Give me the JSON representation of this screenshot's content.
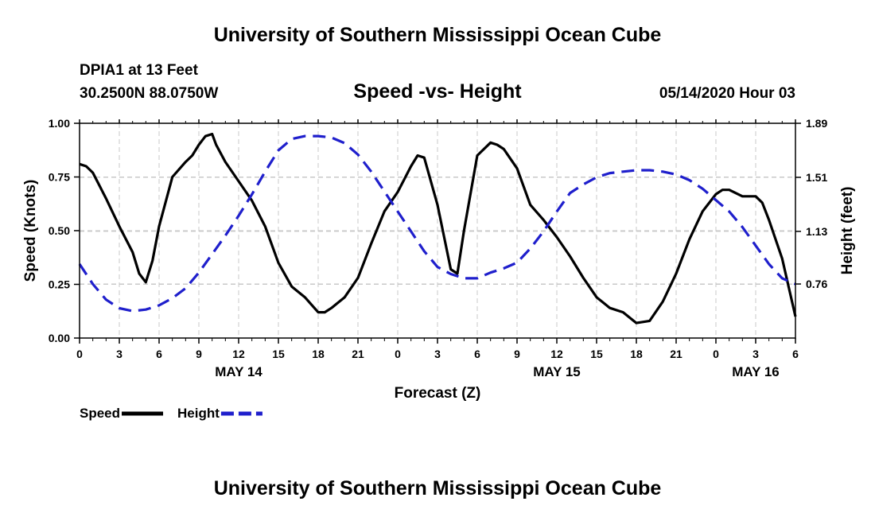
{
  "header": {
    "title_top": "University of Southern Mississippi Ocean Cube",
    "title_bottom": "University of Southern Mississippi Ocean Cube",
    "station": "DPIA1 at 13 Feet",
    "coords": "30.2500N 88.0750W",
    "subtitle": "Speed -vs- Height",
    "datetime": "05/14/2020 Hour 03"
  },
  "chart_data": {
    "type": "line",
    "title": "Speed -vs- Height",
    "xlabel": "Forecast (Z)",
    "ylabel": "Speed (Knots)",
    "y2label": "Height (feet)",
    "xlim": [
      0,
      54
    ],
    "ylim": [
      0,
      1.0
    ],
    "y2lim": [
      0.38,
      1.89
    ],
    "x_ticks": [
      0,
      3,
      6,
      9,
      12,
      15,
      18,
      21,
      24,
      27,
      30,
      33,
      36,
      39,
      42,
      45,
      48,
      51,
      54
    ],
    "x_tick_labels": [
      "0",
      "3",
      "6",
      "9",
      "12",
      "15",
      "18",
      "21",
      "0",
      "3",
      "6",
      "9",
      "12",
      "15",
      "18",
      "21",
      "0",
      "3",
      "6"
    ],
    "y_ticks": [
      0,
      0.25,
      0.5,
      0.75,
      1.0
    ],
    "y_tick_labels": [
      "0.00",
      "0.25",
      "0.50",
      "0.75",
      "1.00"
    ],
    "y2_ticks": [
      0.76,
      1.13,
      1.51,
      1.89
    ],
    "y2_tick_labels": [
      "0.76",
      "1.13",
      "1.51",
      "1.89"
    ],
    "day_labels": [
      {
        "x": 12,
        "label": "MAY 14"
      },
      {
        "x": 36,
        "label": "MAY 15"
      },
      {
        "x": 51,
        "label": "MAY 16"
      }
    ],
    "grid": true,
    "legend_position": "bottom-left",
    "series": [
      {
        "name": "Speed",
        "label": "Speed",
        "axis": "left",
        "color": "#000000",
        "dash": "solid",
        "x": [
          0,
          0.5,
          1,
          2,
          3,
          4,
          4.5,
          5,
          5.5,
          6,
          7,
          8,
          8.5,
          9,
          9.5,
          10,
          10.3,
          11,
          12,
          13,
          14,
          15,
          16,
          17,
          18,
          18.5,
          19,
          20,
          21,
          22,
          23,
          24,
          25,
          25.5,
          26,
          27,
          28,
          28.5,
          29,
          30,
          31,
          31.5,
          32,
          33,
          34,
          35,
          36,
          37,
          38,
          39,
          40,
          41,
          42,
          43,
          44,
          45,
          46,
          47,
          48,
          48.5,
          49,
          50,
          51,
          51.5,
          52,
          53,
          54
        ],
        "values": [
          0.81,
          0.8,
          0.77,
          0.65,
          0.52,
          0.4,
          0.3,
          0.26,
          0.36,
          0.52,
          0.75,
          0.82,
          0.85,
          0.9,
          0.94,
          0.95,
          0.9,
          0.82,
          0.73,
          0.64,
          0.52,
          0.35,
          0.24,
          0.19,
          0.12,
          0.12,
          0.14,
          0.19,
          0.28,
          0.44,
          0.59,
          0.68,
          0.8,
          0.85,
          0.84,
          0.62,
          0.32,
          0.3,
          0.5,
          0.85,
          0.91,
          0.9,
          0.88,
          0.79,
          0.62,
          0.55,
          0.47,
          0.38,
          0.28,
          0.19,
          0.14,
          0.12,
          0.07,
          0.08,
          0.17,
          0.3,
          0.46,
          0.59,
          0.67,
          0.69,
          0.69,
          0.66,
          0.66,
          0.63,
          0.55,
          0.37,
          0.1
        ]
      },
      {
        "name": "Height",
        "label": "Height",
        "axis": "right",
        "color": "#1f1fcc",
        "dash": "dashed",
        "x": [
          0,
          1,
          2,
          3,
          4,
          5,
          6,
          7,
          8,
          9,
          10,
          11,
          12,
          13,
          14,
          15,
          16,
          17,
          18,
          19,
          20,
          21,
          22,
          23,
          24,
          25,
          26,
          27,
          28,
          29,
          30,
          31,
          32,
          33,
          34,
          35,
          36,
          37,
          38,
          39,
          40,
          41,
          42,
          43,
          44,
          45,
          46,
          47,
          48,
          49,
          50,
          51,
          52,
          53,
          54
        ],
        "values": [
          0.9,
          0.76,
          0.65,
          0.59,
          0.57,
          0.58,
          0.61,
          0.66,
          0.73,
          0.84,
          0.97,
          1.1,
          1.24,
          1.39,
          1.55,
          1.7,
          1.78,
          1.8,
          1.8,
          1.79,
          1.75,
          1.67,
          1.55,
          1.41,
          1.27,
          1.13,
          0.99,
          0.88,
          0.83,
          0.8,
          0.8,
          0.84,
          0.87,
          0.91,
          1.01,
          1.13,
          1.27,
          1.4,
          1.46,
          1.51,
          1.54,
          1.55,
          1.56,
          1.56,
          1.55,
          1.53,
          1.49,
          1.43,
          1.35,
          1.27,
          1.16,
          1.03,
          0.9,
          0.8,
          0.76
        ]
      }
    ]
  }
}
